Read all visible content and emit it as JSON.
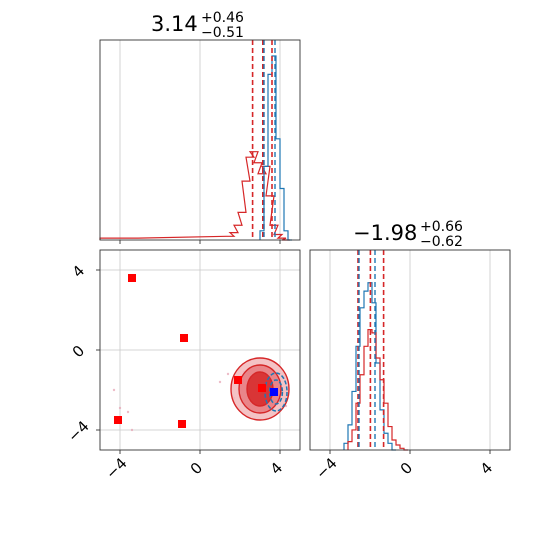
{
  "chart_data": {
    "type": "corner",
    "parameters": [
      {
        "title": {
          "value": "3.14",
          "plus": "+0.46",
          "minus": "−0.51"
        },
        "range": [
          -5,
          5
        ],
        "ticks": [
          -4,
          0,
          4
        ],
        "tick_labels": [
          "−4",
          "0",
          "4"
        ],
        "quantiles": [
          2.63,
          3.14,
          3.6
        ]
      },
      {
        "title": {
          "value": "−1.98",
          "plus": "+0.66",
          "minus": "−0.62"
        },
        "range": [
          -5,
          5
        ],
        "ticks": [
          -4,
          0,
          4
        ],
        "tick_labels": [
          "−4",
          "0",
          "4"
        ],
        "quantiles": [
          -2.6,
          -1.98,
          -1.32
        ]
      }
    ],
    "grid": true,
    "colors": {
      "red": "#d62728",
      "blue": "#1f77b4",
      "marker_red": "#ff0000",
      "marker_blue": "#0000ff"
    },
    "hist_p1_red": {
      "x": [
        -4.8,
        -4.4,
        -3.6,
        -3.3,
        1.5,
        1.7,
        1.9,
        2.1,
        2.3,
        2.5,
        2.7,
        2.9,
        3.1,
        3.3,
        3.5,
        3.7,
        3.9,
        4.1,
        4.3
      ],
      "y": [
        0.01,
        0.01,
        0.01,
        0.01,
        0.02,
        0.04,
        0.08,
        0.15,
        0.32,
        0.45,
        0.48,
        0.42,
        0.36,
        0.4,
        0.24,
        0.08,
        0.03,
        0.01,
        0.0
      ]
    },
    "hist_p1_blue": {
      "x": [
        3.1,
        3.3,
        3.5,
        3.7,
        3.9,
        4.1,
        4.3,
        4.5
      ],
      "y": [
        0.05,
        0.4,
        0.9,
        1.0,
        0.55,
        0.28,
        0.05,
        0.0
      ]
    },
    "hist_p2_red": {
      "x": [
        -3.0,
        -2.8,
        -2.6,
        -2.4,
        -2.2,
        -2.0,
        -1.8,
        -1.6,
        -1.4,
        -1.2,
        -1.0,
        -0.8,
        -0.6,
        -0.4,
        -0.2
      ],
      "y": [
        0.05,
        0.12,
        0.28,
        0.45,
        0.62,
        0.72,
        0.7,
        0.55,
        0.42,
        0.28,
        0.14,
        0.06,
        0.03,
        0.01,
        0.0
      ]
    },
    "hist_p2_blue": {
      "x": [
        -3.2,
        -3.0,
        -2.8,
        -2.6,
        -2.4,
        -2.2,
        -2.0,
        -1.8,
        -1.6,
        -1.4,
        -1.2,
        -1.0,
        -0.8
      ],
      "y": [
        0.04,
        0.15,
        0.35,
        0.62,
        0.85,
        0.95,
        1.0,
        0.88,
        0.52,
        0.24,
        0.1,
        0.04,
        0.0
      ]
    },
    "square_markers_red": [
      {
        "x": -3.4,
        "y": 3.6
      },
      {
        "x": -0.8,
        "y": 0.6
      },
      {
        "x": 1.9,
        "y": -1.5
      },
      {
        "x": 3.1,
        "y": -1.9
      },
      {
        "x": -4.1,
        "y": -3.5
      },
      {
        "x": -0.9,
        "y": -3.7
      }
    ],
    "square_markers_blue": [
      {
        "x": 3.7,
        "y": -2.1
      }
    ],
    "scatter_points": [
      {
        "x": -4.3,
        "y": -2.0
      },
      {
        "x": -4.0,
        "y": -2.9
      },
      {
        "x": -3.6,
        "y": -3.1
      },
      {
        "x": -3.4,
        "y": -4.0
      },
      {
        "x": 1.4,
        "y": -1.2
      },
      {
        "x": 1.0,
        "y": -1.6
      },
      {
        "x": 1.7,
        "y": -2.4
      },
      {
        "x": 2.2,
        "y": -1.1
      },
      {
        "x": 4.2,
        "y": -1.4
      },
      {
        "x": 4.3,
        "y": -2.8
      },
      {
        "x": 2.6,
        "y": -3.0
      }
    ],
    "contours_red": [
      {
        "level": "outer",
        "cx": 3.0,
        "cy": -1.95,
        "rx": 1.45,
        "ry": 1.55
      },
      {
        "level": "middle",
        "cx": 3.0,
        "cy": -1.95,
        "rx": 1.05,
        "ry": 1.2
      },
      {
        "level": "inner",
        "cx": 3.0,
        "cy": -1.95,
        "rx": 0.65,
        "ry": 0.85
      }
    ],
    "contours_blue": [
      {
        "level": "outer",
        "cx": 3.8,
        "cy": -2.1,
        "rx": 0.55,
        "ry": 0.95
      },
      {
        "level": "inner",
        "cx": 3.8,
        "cy": -2.1,
        "rx": 0.32,
        "ry": 0.6
      }
    ]
  }
}
